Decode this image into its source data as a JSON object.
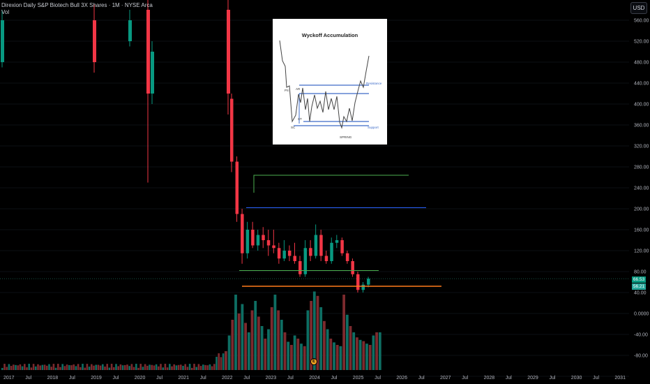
{
  "legend": {
    "title": "Direxion Daily S&P Biotech Bull 3X Shares · 1M · NYSE Arca",
    "volume_label": "Vol"
  },
  "toolbar": {
    "currency": "USD"
  },
  "price_axis": {
    "ticks": [
      "560.00",
      "520.00",
      "480.00",
      "440.00",
      "400.00",
      "360.00",
      "320.00",
      "280.00",
      "240.00",
      "200.00",
      "160.00",
      "120.00",
      "80.00",
      "40.00",
      "0.0000",
      "-40.00",
      "-80.00",
      "-120.00"
    ]
  },
  "price_tags": {
    "last_price": "66.53",
    "prev_price": "56.21"
  },
  "time_axis": {
    "labels": [
      "2017",
      "Jul",
      "2018",
      "Jul",
      "2019",
      "Jul",
      "2020",
      "Jul",
      "2021",
      "Jul",
      "2022",
      "Jul",
      "2023",
      "Jul",
      "2024",
      "Jul",
      "2025",
      "Jul",
      "2026",
      "Jul",
      "2027",
      "Jul",
      "2028",
      "Jul",
      "2029",
      "Jul",
      "2030",
      "Jul",
      "2031"
    ]
  },
  "inset_image": {
    "title": "Wyckoff Accumulation",
    "labels": {
      "ps": "PS",
      "ar": "AR",
      "st": "ST",
      "sc": "SC",
      "spring": "SPRING",
      "resistance": "Resistance",
      "support": "Support"
    }
  },
  "marker": {
    "symbol": "E"
  },
  "colors": {
    "up": "#089981",
    "down": "#f23645",
    "vol_up": "#0e6e63",
    "vol_down": "#7c2a2e",
    "line_green": "#4caf50",
    "line_blue": "#2962ff",
    "line_orange": "#ff7a1a",
    "accent": "#26a69a",
    "inset_blue": "#3d6bc8"
  },
  "chart_data": {
    "type": "candlestick",
    "period": "1M",
    "ylim": [
      -120,
      580
    ],
    "candles_2022_2025": [
      {
        "o": 410,
        "h": 420,
        "l": 270,
        "c": 290
      },
      {
        "o": 290,
        "h": 300,
        "l": 175,
        "c": 190
      },
      {
        "o": 190,
        "h": 200,
        "l": 95,
        "c": 115
      },
      {
        "o": 115,
        "h": 175,
        "l": 105,
        "c": 160
      },
      {
        "o": 160,
        "h": 175,
        "l": 125,
        "c": 130
      },
      {
        "o": 130,
        "h": 160,
        "l": 120,
        "c": 150
      },
      {
        "o": 150,
        "h": 165,
        "l": 125,
        "c": 140
      },
      {
        "o": 140,
        "h": 160,
        "l": 110,
        "c": 130
      },
      {
        "o": 130,
        "h": 160,
        "l": 115,
        "c": 125
      },
      {
        "o": 125,
        "h": 135,
        "l": 95,
        "c": 105
      },
      {
        "o": 105,
        "h": 140,
        "l": 100,
        "c": 120
      },
      {
        "o": 120,
        "h": 130,
        "l": 100,
        "c": 110
      },
      {
        "o": 110,
        "h": 135,
        "l": 95,
        "c": 100
      },
      {
        "o": 100,
        "h": 110,
        "l": 70,
        "c": 75
      },
      {
        "o": 75,
        "h": 140,
        "l": 70,
        "c": 125
      },
      {
        "o": 125,
        "h": 140,
        "l": 100,
        "c": 110
      },
      {
        "o": 110,
        "h": 170,
        "l": 105,
        "c": 150
      },
      {
        "o": 150,
        "h": 160,
        "l": 100,
        "c": 110
      },
      {
        "o": 110,
        "h": 120,
        "l": 95,
        "c": 100
      },
      {
        "o": 100,
        "h": 145,
        "l": 95,
        "c": 135
      },
      {
        "o": 135,
        "h": 150,
        "l": 125,
        "c": 140
      },
      {
        "o": 140,
        "h": 145,
        "l": 110,
        "c": 115
      },
      {
        "o": 115,
        "h": 120,
        "l": 95,
        "c": 100
      },
      {
        "o": 100,
        "h": 105,
        "l": 70,
        "c": 75
      },
      {
        "o": 75,
        "h": 80,
        "l": 40,
        "c": 45
      },
      {
        "o": 45,
        "h": 60,
        "l": 40,
        "c": 55
      },
      {
        "o": 55,
        "h": 70,
        "l": 50,
        "c": 66.53
      }
    ],
    "levels": [
      {
        "name": "",
        "value": 264
      },
      {
        "name": "",
        "value": 202
      },
      {
        "name": "",
        "value": 82
      },
      {
        "name": "",
        "value": 52
      }
    ]
  }
}
